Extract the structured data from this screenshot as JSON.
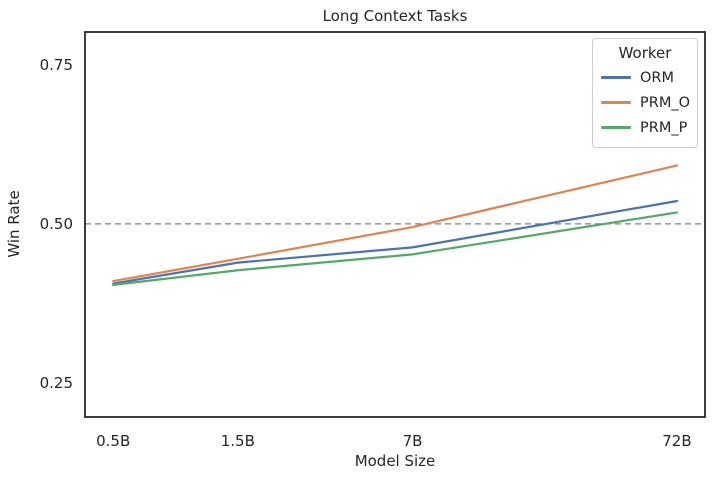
{
  "chart_data": {
    "type": "line",
    "title": "Long Context Tasks",
    "xlabel": "Model Size",
    "ylabel": "Win Rate",
    "x_scale": "log",
    "x": [
      0.5,
      1.5,
      7,
      72
    ],
    "x_tick_labels": [
      "0.5B",
      "1.5B",
      "7B",
      "72B"
    ],
    "y_ticks": [
      0.25,
      0.5,
      0.75
    ],
    "y_tick_labels": [
      "0.25",
      "0.50",
      "0.75"
    ],
    "xlim": [
      0.39,
      92.2
    ],
    "ylim": [
      0.196,
      0.802
    ],
    "grid": false,
    "legend_title": "Worker",
    "legend_position": "upper right",
    "series": [
      {
        "name": "ORM",
        "color": "#4C72B0",
        "values": [
          0.406,
          0.439,
          0.463,
          0.536
        ]
      },
      {
        "name": "PRM_O",
        "color": "#DD8452",
        "values": [
          0.41,
          0.445,
          0.495,
          0.592
        ]
      },
      {
        "name": "PRM_P",
        "color": "#55A868",
        "values": [
          0.404,
          0.427,
          0.452,
          0.518
        ]
      }
    ],
    "reference_line": {
      "y": 0.5,
      "style": "dashed",
      "color": "#7f7f7f"
    },
    "spine_color": "#262626",
    "text_color": "#262626"
  }
}
